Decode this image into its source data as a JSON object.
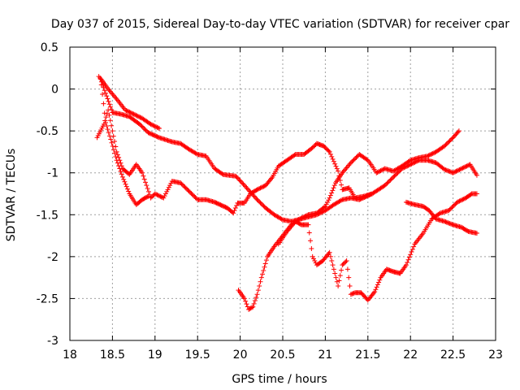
{
  "chart_data": {
    "type": "scatter",
    "title": "Day 037 of 2015, Sidereal Day-to-day VTEC variation (SDTVAR) for receiver cpar",
    "xlabel": "GPS time / hours",
    "ylabel": "SDTVAR / TECUs",
    "xlim": [
      18,
      23
    ],
    "ylim": [
      -3,
      0.5
    ],
    "xticks": [
      "18",
      "18.5",
      "19",
      "19.5",
      "20",
      "20.5",
      "21",
      "21.5",
      "22",
      "22.5",
      "23"
    ],
    "yticks": [
      "0.5",
      "0",
      "-0.5",
      "-1",
      "-1.5",
      "-2",
      "-2.5",
      "-3"
    ],
    "grid": true,
    "marker": "plus",
    "color": "#ff0000",
    "series": [
      {
        "name": "track-1",
        "points": [
          [
            18.34,
            0.15
          ],
          [
            18.38,
            0.1
          ],
          [
            18.45,
            0.0
          ],
          [
            18.55,
            -0.12
          ],
          [
            18.65,
            -0.25
          ],
          [
            18.75,
            -0.3
          ],
          [
            18.85,
            -0.35
          ],
          [
            18.95,
            -0.42
          ],
          [
            19.05,
            -0.47
          ]
        ]
      },
      {
        "name": "track-2",
        "points": [
          [
            18.36,
            0.12
          ],
          [
            18.42,
            -0.05
          ],
          [
            18.5,
            -0.28
          ],
          [
            18.6,
            -0.3
          ],
          [
            18.7,
            -0.33
          ],
          [
            18.82,
            -0.42
          ],
          [
            18.92,
            -0.52
          ],
          [
            19.05,
            -0.58
          ],
          [
            19.2,
            -0.63
          ],
          [
            19.3,
            -0.65
          ],
          [
            19.4,
            -0.72
          ],
          [
            19.5,
            -0.78
          ],
          [
            19.6,
            -0.8
          ],
          [
            19.7,
            -0.95
          ],
          [
            19.8,
            -1.02
          ],
          [
            19.95,
            -1.04
          ],
          [
            20.05,
            -1.15
          ],
          [
            20.2,
            -1.32
          ],
          [
            20.3,
            -1.42
          ],
          [
            20.4,
            -1.5
          ],
          [
            20.5,
            -1.56
          ],
          [
            20.6,
            -1.58
          ],
          [
            20.75,
            -1.54
          ],
          [
            20.9,
            -1.5
          ],
          [
            21.0,
            -1.45
          ],
          [
            21.1,
            -1.38
          ],
          [
            21.2,
            -1.32
          ],
          [
            21.3,
            -1.3
          ],
          [
            21.4,
            -1.32
          ],
          [
            21.55,
            -1.25
          ],
          [
            21.7,
            -1.15
          ],
          [
            21.8,
            -1.05
          ],
          [
            21.9,
            -0.95
          ],
          [
            22.0,
            -0.9
          ],
          [
            22.1,
            -0.85
          ],
          [
            22.2,
            -0.85
          ],
          [
            22.3,
            -0.88
          ],
          [
            22.4,
            -0.96
          ],
          [
            22.5,
            -1.0
          ],
          [
            22.6,
            -0.95
          ],
          [
            22.7,
            -0.9
          ],
          [
            22.78,
            -1.03
          ]
        ]
      },
      {
        "name": "track-3",
        "points": [
          [
            18.32,
            -0.58
          ],
          [
            18.4,
            -0.42
          ],
          [
            18.45,
            -0.25
          ],
          [
            18.5,
            -0.5
          ],
          [
            18.55,
            -0.75
          ],
          [
            18.62,
            -0.95
          ],
          [
            18.7,
            -1.02
          ],
          [
            18.78,
            -0.9
          ],
          [
            18.85,
            -1.0
          ],
          [
            18.95,
            -1.3
          ],
          [
            19.0,
            -1.25
          ],
          [
            19.1,
            -1.3
          ],
          [
            19.2,
            -1.1
          ],
          [
            19.3,
            -1.12
          ],
          [
            19.4,
            -1.22
          ],
          [
            19.5,
            -1.32
          ],
          [
            19.6,
            -1.32
          ],
          [
            19.7,
            -1.35
          ],
          [
            19.85,
            -1.42
          ],
          [
            19.92,
            -1.48
          ],
          [
            19.97,
            -1.36
          ],
          [
            20.05,
            -1.36
          ],
          [
            20.12,
            -1.25
          ],
          [
            20.2,
            -1.2
          ],
          [
            20.3,
            -1.15
          ],
          [
            20.38,
            -1.05
          ],
          [
            20.45,
            -0.92
          ],
          [
            20.55,
            -0.85
          ],
          [
            20.65,
            -0.78
          ],
          [
            20.75,
            -0.78
          ],
          [
            20.85,
            -0.7
          ],
          [
            20.9,
            -0.65
          ],
          [
            20.98,
            -0.68
          ],
          [
            21.05,
            -0.75
          ],
          [
            21.15,
            -0.98
          ],
          [
            21.2,
            -1.2
          ],
          [
            21.28,
            -1.18
          ],
          [
            21.35,
            -1.3
          ],
          [
            21.45,
            -1.28
          ],
          [
            21.55,
            -1.25
          ]
        ]
      },
      {
        "name": "track-4",
        "points": [
          [
            18.37,
            0.05
          ],
          [
            18.42,
            -0.4
          ],
          [
            18.48,
            -0.6
          ],
          [
            18.55,
            -0.85
          ],
          [
            18.62,
            -1.05
          ],
          [
            18.7,
            -1.25
          ],
          [
            18.78,
            -1.38
          ],
          [
            18.85,
            -1.32
          ],
          [
            18.92,
            -1.28
          ]
        ]
      },
      {
        "name": "track-5",
        "points": [
          [
            19.98,
            -2.4
          ],
          [
            20.05,
            -2.5
          ],
          [
            20.1,
            -2.63
          ],
          [
            20.15,
            -2.6
          ],
          [
            20.2,
            -2.45
          ],
          [
            20.25,
            -2.25
          ],
          [
            20.32,
            -2.0
          ],
          [
            20.4,
            -1.88
          ],
          [
            20.5,
            -1.75
          ],
          [
            20.6,
            -1.62
          ],
          [
            20.7,
            -1.55
          ],
          [
            20.8,
            -1.5
          ],
          [
            20.9,
            -1.48
          ],
          [
            21.0,
            -1.4
          ],
          [
            21.05,
            -1.3
          ],
          [
            21.12,
            -1.12
          ],
          [
            21.2,
            -1.0
          ],
          [
            21.3,
            -0.88
          ],
          [
            21.4,
            -0.78
          ],
          [
            21.5,
            -0.85
          ],
          [
            21.55,
            -0.92
          ],
          [
            21.6,
            -1.0
          ],
          [
            21.7,
            -0.95
          ],
          [
            21.8,
            -0.98
          ],
          [
            21.9,
            -0.92
          ],
          [
            22.0,
            -0.85
          ],
          [
            22.1,
            -0.82
          ],
          [
            22.2,
            -0.8
          ],
          [
            22.3,
            -0.75
          ],
          [
            22.4,
            -0.68
          ],
          [
            22.5,
            -0.58
          ],
          [
            22.57,
            -0.5
          ]
        ]
      },
      {
        "name": "track-6",
        "points": [
          [
            20.45,
            -1.85
          ],
          [
            20.55,
            -1.7
          ],
          [
            20.65,
            -1.58
          ],
          [
            20.72,
            -1.62
          ],
          [
            20.8,
            -1.62
          ],
          [
            20.85,
            -2.0
          ],
          [
            20.9,
            -2.1
          ],
          [
            20.97,
            -2.05
          ],
          [
            21.05,
            -1.95
          ],
          [
            21.1,
            -2.15
          ],
          [
            21.15,
            -2.35
          ],
          [
            21.2,
            -2.1
          ],
          [
            21.25,
            -2.05
          ],
          [
            21.3,
            -2.45
          ],
          [
            21.35,
            -2.43
          ],
          [
            21.42,
            -2.43
          ],
          [
            21.5,
            -2.52
          ],
          [
            21.58,
            -2.42
          ],
          [
            21.65,
            -2.25
          ],
          [
            21.72,
            -2.15
          ],
          [
            21.8,
            -2.18
          ],
          [
            21.88,
            -2.2
          ],
          [
            21.95,
            -2.1
          ],
          [
            22.05,
            -1.85
          ],
          [
            22.15,
            -1.72
          ],
          [
            22.25,
            -1.55
          ],
          [
            22.35,
            -1.48
          ],
          [
            22.45,
            -1.45
          ],
          [
            22.55,
            -1.35
          ],
          [
            22.65,
            -1.3
          ],
          [
            22.72,
            -1.25
          ],
          [
            22.78,
            -1.25
          ]
        ]
      },
      {
        "name": "track-7",
        "points": [
          [
            21.95,
            -1.35
          ],
          [
            22.05,
            -1.38
          ],
          [
            22.15,
            -1.4
          ],
          [
            22.22,
            -1.45
          ],
          [
            22.3,
            -1.55
          ],
          [
            22.4,
            -1.58
          ],
          [
            22.5,
            -1.62
          ],
          [
            22.6,
            -1.65
          ],
          [
            22.68,
            -1.7
          ],
          [
            22.78,
            -1.72
          ]
        ]
      }
    ]
  }
}
